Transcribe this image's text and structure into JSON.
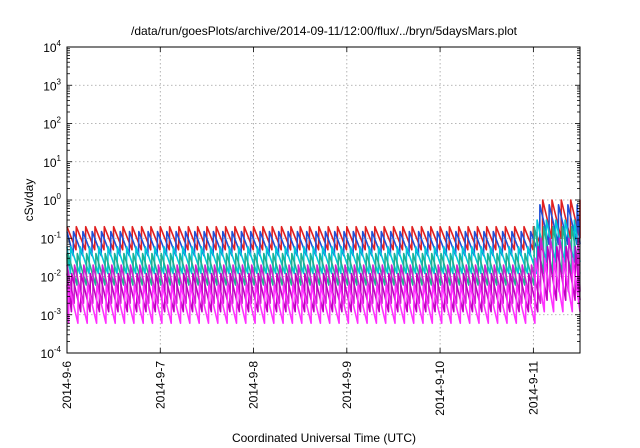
{
  "chart_data": {
    "type": "line",
    "title": "/data/run/goesPlots/archive/2014-09-11/12:00/flux/../bryn/5daysMars.plot",
    "xlabel": "Coordinated Universal Time (UTC)",
    "ylabel": "cSv/day",
    "yscale": "log",
    "ylim": [
      0.0001,
      10000
    ],
    "y_ticks": [
      {
        "base": "10",
        "exp": "-4",
        "value": 0.0001
      },
      {
        "base": "10",
        "exp": "-3",
        "value": 0.001
      },
      {
        "base": "10",
        "exp": "-2",
        "value": 0.01
      },
      {
        "base": "10",
        "exp": "-1",
        "value": 0.1
      },
      {
        "base": "10",
        "exp": "0",
        "value": 1
      },
      {
        "base": "10",
        "exp": "1",
        "value": 10
      },
      {
        "base": "10",
        "exp": "2",
        "value": 100
      },
      {
        "base": "10",
        "exp": "3",
        "value": 1000
      },
      {
        "base": "10",
        "exp": "4",
        "value": 10000
      }
    ],
    "xlim": [
      "2014-09-06 00:00",
      "2014-09-11 12:00"
    ],
    "x_ticks": [
      {
        "label": "2014-9-6",
        "day": 0
      },
      {
        "label": "2014-9-7",
        "day": 1
      },
      {
        "label": "2014-9-8",
        "day": 2
      },
      {
        "label": "2014-9-9",
        "day": 3
      },
      {
        "label": "2014-9-10",
        "day": 4
      },
      {
        "label": "2014-9-11",
        "day": 5
      }
    ],
    "grid": true,
    "sawtooth_period_hours": 2.4,
    "series": [
      {
        "color": "#e02020",
        "peak": 0.2,
        "trough": 0.05
      },
      {
        "color": "#2050d8",
        "peak": 0.15,
        "trough": 0.035
      },
      {
        "color": "#00c8d8",
        "peak": 0.06,
        "trough": 0.012
      },
      {
        "color": "#20b090",
        "peak": 0.04,
        "trough": 0.006
      },
      {
        "color": "#d020d0",
        "peak": 0.02,
        "trough": 0.002
      },
      {
        "color": "#c000c0",
        "peak": 0.012,
        "trough": 0.0012
      },
      {
        "color": "#ff30ff",
        "peak": 0.006,
        "trough": 0.0006
      }
    ],
    "final_day_factor": 5
  }
}
